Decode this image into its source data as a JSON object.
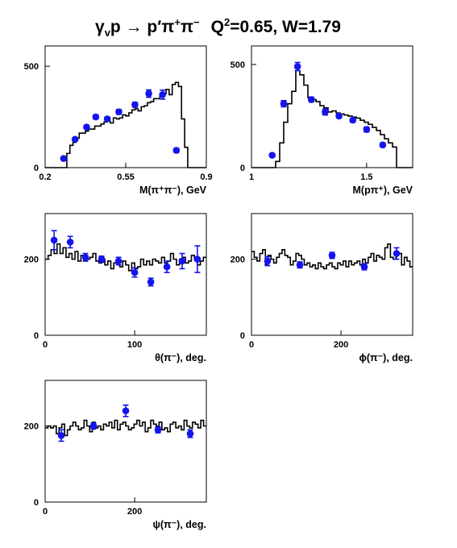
{
  "title": {
    "reaction": "γ",
    "reaction_sub": "v",
    "reaction_rest": "p → p′π",
    "pi_plus_sup": "+",
    "pi": "π",
    "pi_minus_sup": "−",
    "kin": "Q",
    "kin_sup": "2",
    "kin_rest": "=0.65, W=1.79"
  },
  "chart_data": [
    {
      "type": "bar",
      "id": "m_pipi",
      "xlabel": "M(π⁺π⁻), GeV",
      "xlim": [
        0.2,
        0.9
      ],
      "ylim": [
        0,
        600
      ],
      "xticks": [
        0.2,
        0.55,
        0.9
      ],
      "xtick_labels": [
        "0.2",
        "0.55",
        "0.9"
      ],
      "yticks": [
        0,
        500
      ],
      "ytick_labels": [
        "0",
        "500"
      ],
      "histogram": {
        "name": "model",
        "x_start": 0.2,
        "x_end": 0.9,
        "values": [
          0,
          0,
          0,
          0,
          0,
          0,
          0,
          70,
          110,
          125,
          145,
          170,
          170,
          180,
          190,
          190,
          205,
          205,
          215,
          225,
          230,
          220,
          245,
          240,
          245,
          260,
          255,
          270,
          285,
          290,
          280,
          300,
          305,
          320,
          325,
          340,
          340,
          360,
          365,
          385,
          360,
          410,
          420,
          400,
          240,
          100,
          0,
          0,
          0,
          0,
          0,
          0
        ]
      },
      "series": [
        {
          "name": "data",
          "x": [
            0.28,
            0.33,
            0.38,
            0.42,
            0.47,
            0.52,
            0.59,
            0.65,
            0.71,
            0.77
          ],
          "values": [
            45,
            140,
            200,
            250,
            240,
            275,
            310,
            365,
            360,
            85
          ],
          "errors": [
            6,
            8,
            8,
            10,
            10,
            12,
            12,
            18,
            22,
            10
          ]
        }
      ]
    },
    {
      "type": "bar",
      "id": "m_ppi",
      "xlabel": "M(pπ⁺), GeV",
      "xlim": [
        1.0,
        1.7
      ],
      "ylim": [
        0,
        590
      ],
      "xticks": [
        1.0,
        1.5
      ],
      "xtick_labels": [
        "1",
        "1.5"
      ],
      "yticks": [
        0,
        500
      ],
      "ytick_labels": [
        "0",
        "500"
      ],
      "histogram": {
        "name": "model",
        "x_start": 1.0,
        "x_end": 1.7,
        "values": [
          0,
          0,
          0,
          0,
          0,
          0,
          30,
          120,
          220,
          310,
          370,
          470,
          450,
          400,
          340,
          330,
          320,
          300,
          290,
          270,
          275,
          265,
          260,
          255,
          250,
          245,
          240,
          230,
          220,
          210,
          195,
          180,
          160,
          140,
          120,
          100,
          0,
          0,
          0,
          0
        ]
      },
      "series": [
        {
          "name": "data",
          "x": [
            1.09,
            1.14,
            1.2,
            1.26,
            1.32,
            1.38,
            1.44,
            1.5,
            1.57
          ],
          "values": [
            60,
            310,
            490,
            330,
            270,
            250,
            230,
            185,
            110
          ],
          "errors": [
            8,
            15,
            20,
            12,
            15,
            10,
            10,
            12,
            10
          ]
        }
      ]
    },
    {
      "type": "bar",
      "id": "theta",
      "xlabel": "θ(π⁻), deg.",
      "xlim": [
        0,
        180
      ],
      "ylim": [
        0,
        320
      ],
      "xticks": [
        0,
        100
      ],
      "xtick_labels": [
        "0",
        "100"
      ],
      "yticks": [
        0,
        200
      ],
      "ytick_labels": [
        "0",
        "200"
      ],
      "histogram": {
        "name": "model",
        "x_start": 0,
        "x_end": 180,
        "values": [
          200,
          210,
          225,
          215,
          240,
          215,
          230,
          205,
          215,
          200,
          220,
          195,
          210,
          195,
          200,
          205,
          215,
          195,
          190,
          200,
          185,
          195,
          175,
          190,
          185,
          180,
          195,
          185,
          170,
          190,
          175,
          180,
          200,
          185,
          195,
          185,
          200,
          195,
          190,
          205,
          190,
          195,
          215,
          200,
          185,
          200,
          205,
          190,
          195,
          210,
          200,
          185,
          195,
          205
        ]
      },
      "series": [
        {
          "name": "data",
          "x": [
            10,
            28,
            45,
            63,
            82,
            100,
            118,
            136,
            153,
            170
          ],
          "values": [
            250,
            245,
            205,
            200,
            195,
            165,
            140,
            180,
            195,
            200
          ],
          "errors": [
            25,
            15,
            10,
            8,
            10,
            12,
            10,
            15,
            20,
            35
          ]
        }
      ]
    },
    {
      "type": "bar",
      "id": "phi",
      "xlabel": "ϕ(π⁻), deg.",
      "xlim": [
        0,
        360
      ],
      "ylim": [
        0,
        320
      ],
      "xticks": [
        0,
        200
      ],
      "xtick_labels": [
        "0",
        "200"
      ],
      "yticks": [
        0,
        200
      ],
      "ytick_labels": [
        "0",
        "200"
      ],
      "histogram": {
        "name": "model",
        "x_start": 0,
        "x_end": 360,
        "values": [
          220,
          205,
          195,
          215,
          225,
          185,
          210,
          200,
          190,
          205,
          215,
          225,
          210,
          205,
          185,
          195,
          215,
          210,
          200,
          185,
          190,
          180,
          185,
          175,
          190,
          180,
          175,
          185,
          190,
          180,
          175,
          190,
          185,
          195,
          180,
          195,
          185,
          190,
          195,
          185,
          200,
          190,
          205,
          215,
          195,
          210,
          205,
          200,
          230,
          240,
          205,
          200,
          210,
          215,
          185,
          205,
          195,
          180
        ]
      },
      "series": [
        {
          "name": "data",
          "x": [
            36,
            108,
            180,
            252,
            324
          ],
          "values": [
            195,
            185,
            210,
            180,
            215
          ],
          "errors": [
            12,
            8,
            8,
            8,
            15
          ]
        }
      ]
    },
    {
      "type": "bar",
      "id": "psi",
      "xlabel": "ψ(π⁻), deg.",
      "xlim": [
        0,
        360
      ],
      "ylim": [
        0,
        320
      ],
      "xticks": [
        0,
        200
      ],
      "xtick_labels": [
        "0",
        "200"
      ],
      "yticks": [
        0,
        200
      ],
      "ytick_labels": [
        "0",
        "200"
      ],
      "histogram": {
        "name": "model",
        "x_start": 0,
        "x_end": 360,
        "values": [
          195,
          200,
          195,
          200,
          180,
          195,
          205,
          175,
          190,
          200,
          210,
          200,
          190,
          195,
          215,
          200,
          185,
          210,
          195,
          200,
          190,
          205,
          200,
          210,
          195,
          215,
          190,
          205,
          210,
          200,
          190,
          195,
          205,
          215,
          200,
          210,
          185,
          195,
          215,
          205,
          200,
          210,
          190,
          195,
          185,
          205,
          210,
          195,
          200,
          190,
          215,
          200,
          195,
          210,
          205,
          195,
          215,
          200
        ]
      },
      "series": [
        {
          "name": "data",
          "x": [
            36,
            108,
            180,
            252,
            324
          ],
          "values": [
            175,
            200,
            240,
            190,
            180
          ],
          "errors": [
            15,
            8,
            15,
            8,
            10
          ]
        }
      ]
    }
  ]
}
